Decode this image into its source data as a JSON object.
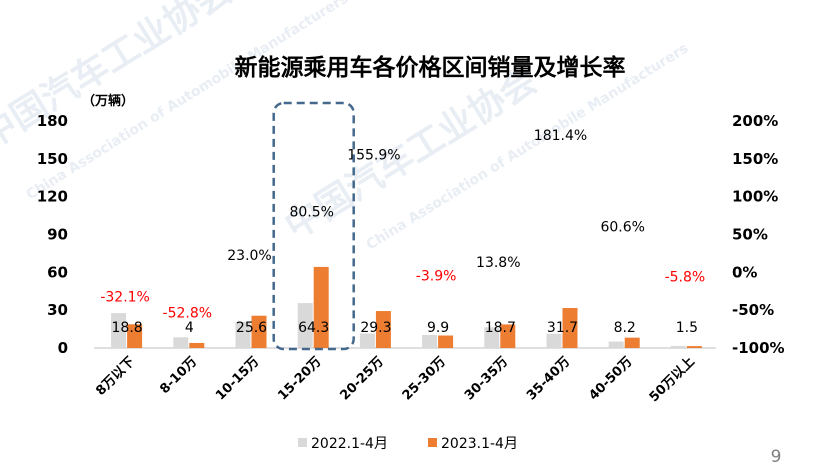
{
  "page_number": "9",
  "watermark": {
    "cn": "中国汽车工业协会",
    "en": "China Association of Automobile Manufacturers"
  },
  "colors": {
    "series_2022": "#d9d9d9",
    "series_2023": "#ed7d31",
    "negative_rate": "#ff0000",
    "highlight_box": "#44698d"
  },
  "chart_data": {
    "type": "bar",
    "title": "新能源乘用车各价格区间销量及增长率",
    "y_unit": "（万辆）",
    "categories": [
      "8万以下",
      "8-10万",
      "10-15万",
      "15-20万",
      "20-25万",
      "25-30万",
      "30-35万",
      "35-40万",
      "40-50万",
      "50万以上"
    ],
    "ylim": [
      0,
      180
    ],
    "yticks": [
      "0",
      "30",
      "60",
      "90",
      "120",
      "150",
      "180"
    ],
    "y2lim": [
      -100,
      200
    ],
    "y2ticks": [
      "-100%",
      "-50%",
      "0%",
      "50%",
      "100%",
      "150%",
      "200%"
    ],
    "series": [
      {
        "name": "2022.1-4月",
        "values": [
          27.7,
          8.5,
          20.8,
          35.6,
          11.5,
          10.3,
          16.4,
          11.3,
          5.1,
          1.6
        ]
      },
      {
        "name": "2023.1-4月",
        "values": [
          18.8,
          4,
          25.6,
          64.3,
          29.3,
          9.9,
          18.7,
          31.7,
          8.2,
          1.5
        ]
      }
    ],
    "bar_labels": [
      "18.8",
      "4",
      "25.6",
      "64.3",
      "29.3",
      "9.9",
      "18.7",
      "31.7",
      "8.2",
      "1.5"
    ],
    "growth_rates": [
      -32.1,
      -52.8,
      23.0,
      80.5,
      155.9,
      -3.9,
      13.8,
      181.4,
      60.6,
      -5.8
    ],
    "growth_labels": [
      "-32.1%",
      "-52.8%",
      "23.0%",
      "80.5%",
      "155.9%",
      "-3.9%",
      "13.8%",
      "181.4%",
      "60.6%",
      "-5.8%"
    ],
    "highlight_category": "15-20万",
    "legend_position": "bottom",
    "grid": false
  }
}
